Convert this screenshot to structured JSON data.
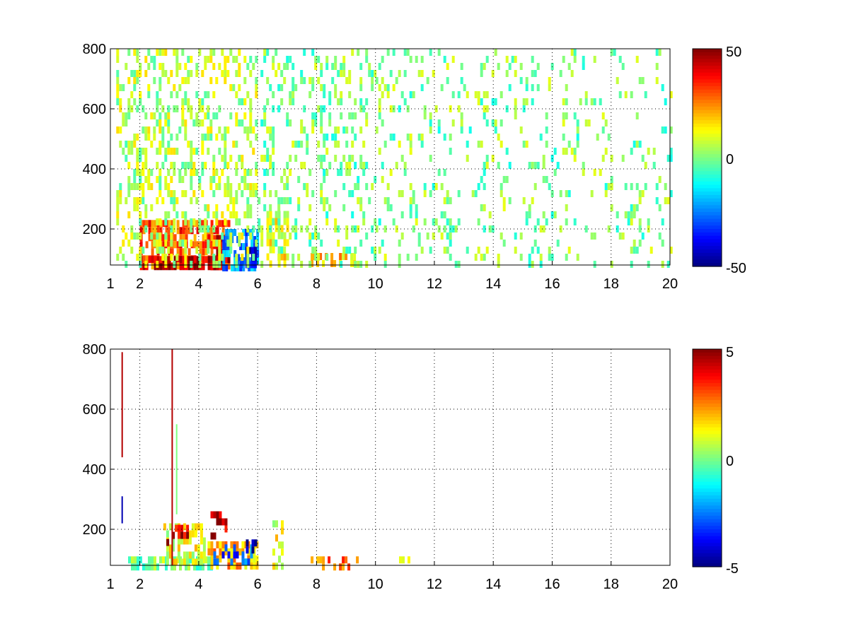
{
  "chart_data": [
    {
      "type": "heatmap",
      "xlim": [
        1,
        20
      ],
      "ylim": [
        80,
        800
      ],
      "xticks": [
        1,
        2,
        4,
        6,
        8,
        10,
        12,
        14,
        16,
        18,
        20
      ],
      "yticks": [
        200,
        400,
        600,
        800
      ],
      "xtick_labels": [
        "1",
        "2",
        "4",
        "6",
        "8",
        "10",
        "12",
        "14",
        "16",
        "18",
        "20"
      ],
      "ytick_labels": [
        "200",
        "400",
        "600",
        "800"
      ],
      "grid": true,
      "colormap": "jet",
      "clim": [
        -50,
        50
      ],
      "colorbar_tick_labels": [
        "50",
        "0",
        "-50"
      ],
      "regions": [
        {
          "x": [
            2.0,
            5.0
          ],
          "y": [
            80,
            230
          ],
          "value": 30,
          "density": 0.75
        },
        {
          "x": [
            2.0,
            4.6
          ],
          "y": [
            80,
            110
          ],
          "value": 45,
          "density": 0.85
        },
        {
          "x": [
            4.4,
            5.0
          ],
          "y": [
            80,
            180
          ],
          "value": 42,
          "density": 0.7
        },
        {
          "x": [
            4.8,
            6.0
          ],
          "y": [
            80,
            200
          ],
          "value": -25,
          "density": 0.7
        },
        {
          "x": [
            5.3,
            5.9
          ],
          "y": [
            80,
            140
          ],
          "value": -40,
          "density": 0.6
        },
        {
          "x": [
            6.3,
            7.0
          ],
          "y": [
            80,
            260
          ],
          "value": 12,
          "density": 0.6
        },
        {
          "x": [
            7.8,
            9.3
          ],
          "y": [
            80,
            120
          ],
          "value": 18,
          "density": 0.55
        },
        {
          "x": [
            1.2,
            6.0
          ],
          "y": [
            80,
            800
          ],
          "value": 5,
          "density": 0.35
        },
        {
          "x": [
            6.0,
            10.0
          ],
          "y": [
            80,
            800
          ],
          "value": 0,
          "density": 0.22
        },
        {
          "x": [
            10.0,
            20.0
          ],
          "y": [
            80,
            800
          ],
          "value": 0,
          "density": 0.14
        }
      ]
    },
    {
      "type": "heatmap",
      "xlim": [
        1,
        20
      ],
      "ylim": [
        80,
        800
      ],
      "xticks": [
        1,
        2,
        4,
        6,
        8,
        10,
        12,
        14,
        16,
        18,
        20
      ],
      "yticks": [
        200,
        400,
        600,
        800
      ],
      "xtick_labels": [
        "1",
        "2",
        "4",
        "6",
        "8",
        "10",
        "12",
        "14",
        "16",
        "18",
        "20"
      ],
      "ytick_labels": [
        "200",
        "400",
        "600",
        "800"
      ],
      "grid": true,
      "colormap": "jet",
      "clim": [
        -5,
        5
      ],
      "colorbar_tick_labels": [
        "5",
        "0",
        "-5"
      ],
      "regions": [
        {
          "x": [
            1.6,
            4.4
          ],
          "y": [
            80,
            110
          ],
          "value": 0,
          "density": 0.7
        },
        {
          "x": [
            2.8,
            4.2
          ],
          "y": [
            80,
            220
          ],
          "value": 1,
          "density": 0.45
        },
        {
          "x": [
            2.9,
            3.6
          ],
          "y": [
            160,
            215
          ],
          "value": 4,
          "density": 0.45
        },
        {
          "x": [
            4.3,
            6.0
          ],
          "y": [
            80,
            160
          ],
          "value": 2,
          "density": 0.65
        },
        {
          "x": [
            4.4,
            5.8
          ],
          "y": [
            90,
            150
          ],
          "value": -3,
          "density": 0.4
        },
        {
          "x": [
            4.4,
            4.9
          ],
          "y": [
            180,
            260
          ],
          "value": 4.5,
          "density": 0.4
        },
        {
          "x": [
            5.6,
            5.9
          ],
          "y": [
            100,
            190
          ],
          "value": -4.5,
          "density": 0.45
        },
        {
          "x": [
            6.5,
            6.8
          ],
          "y": [
            80,
            230
          ],
          "value": 1,
          "density": 0.4
        },
        {
          "x": [
            7.8,
            9.4
          ],
          "y": [
            80,
            110
          ],
          "value": 2.5,
          "density": 0.55
        },
        {
          "x": [
            10.8,
            11.2
          ],
          "y": [
            90,
            110
          ],
          "value": 0.5,
          "density": 0.7
        }
      ],
      "lines": [
        {
          "x": 1.4,
          "y": [
            440,
            790
          ],
          "value": 4.5
        },
        {
          "x": 1.4,
          "y": [
            220,
            310
          ],
          "value": -4.5
        },
        {
          "x": 3.1,
          "y": [
            80,
            800
          ],
          "value": 4.5
        },
        {
          "x": 3.25,
          "y": [
            250,
            550
          ],
          "value": 0
        }
      ]
    }
  ]
}
